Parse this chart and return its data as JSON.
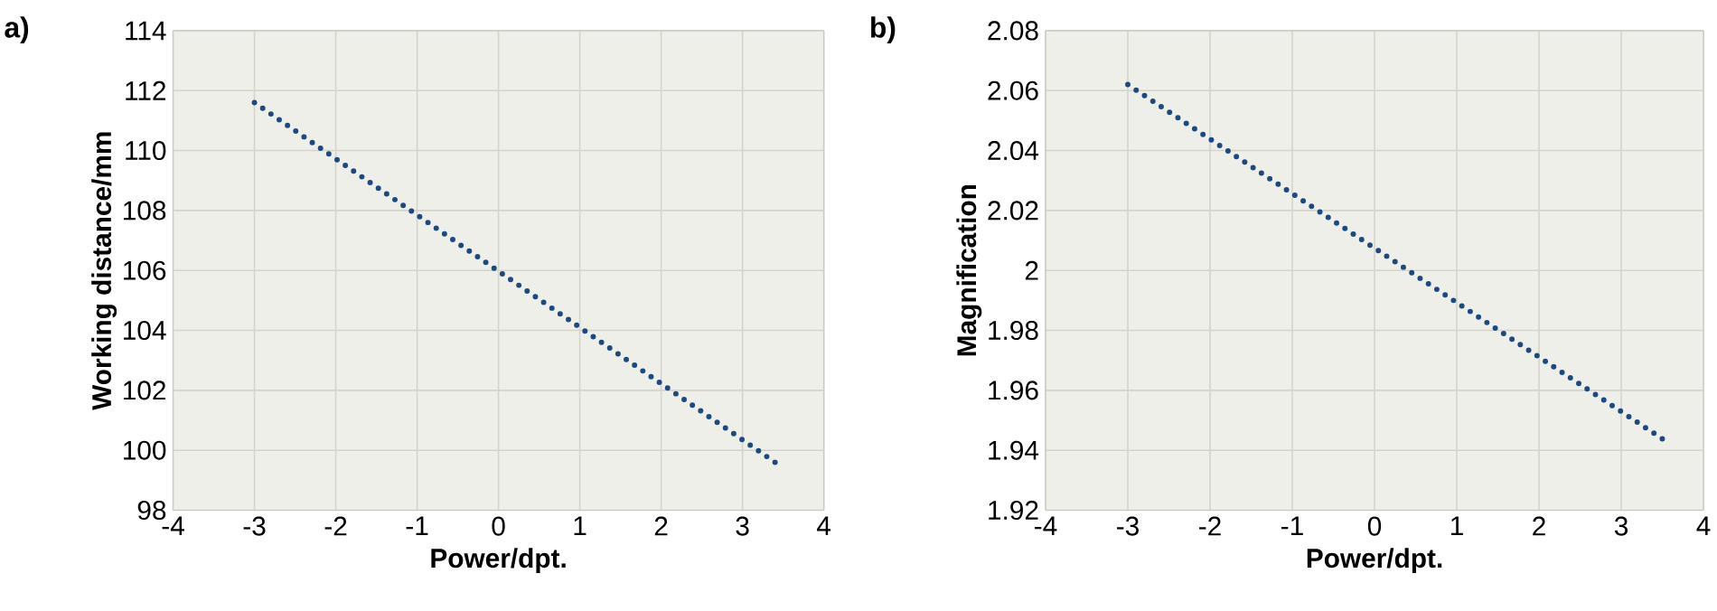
{
  "chart_data": [
    {
      "type": "line",
      "title": "a)",
      "xlabel": "Power/dpt.",
      "ylabel": "Working distance/mm",
      "x": [
        -3,
        3.4
      ],
      "series": [
        {
          "color": "#1b4a82",
          "values": [
            111.6,
            99.6
          ]
        }
      ],
      "xlim": [
        -4,
        4
      ],
      "xticks": [
        -4,
        -3,
        -2,
        -1,
        0,
        1,
        2,
        3,
        4
      ],
      "ylim": [
        98,
        114
      ],
      "yticks": [
        98,
        100,
        102,
        104,
        106,
        108,
        110,
        112,
        114
      ],
      "grid": true,
      "line_style": "dotted"
    },
    {
      "type": "line",
      "title": "b)",
      "xlabel": "Power/dpt.",
      "ylabel": "Magnification",
      "x": [
        -3,
        3.6
      ],
      "series": [
        {
          "color": "#1b4a82",
          "values": [
            2.062,
            1.942
          ]
        }
      ],
      "xlim": [
        -4,
        4
      ],
      "xticks": [
        -4,
        -3,
        -2,
        -1,
        0,
        1,
        2,
        3,
        4
      ],
      "ylim": [
        1.92,
        2.08
      ],
      "yticks": [
        1.92,
        1.94,
        1.96,
        1.98,
        2,
        2.02,
        2.04,
        2.06,
        2.08
      ],
      "grid": true,
      "line_style": "dotted"
    }
  ]
}
